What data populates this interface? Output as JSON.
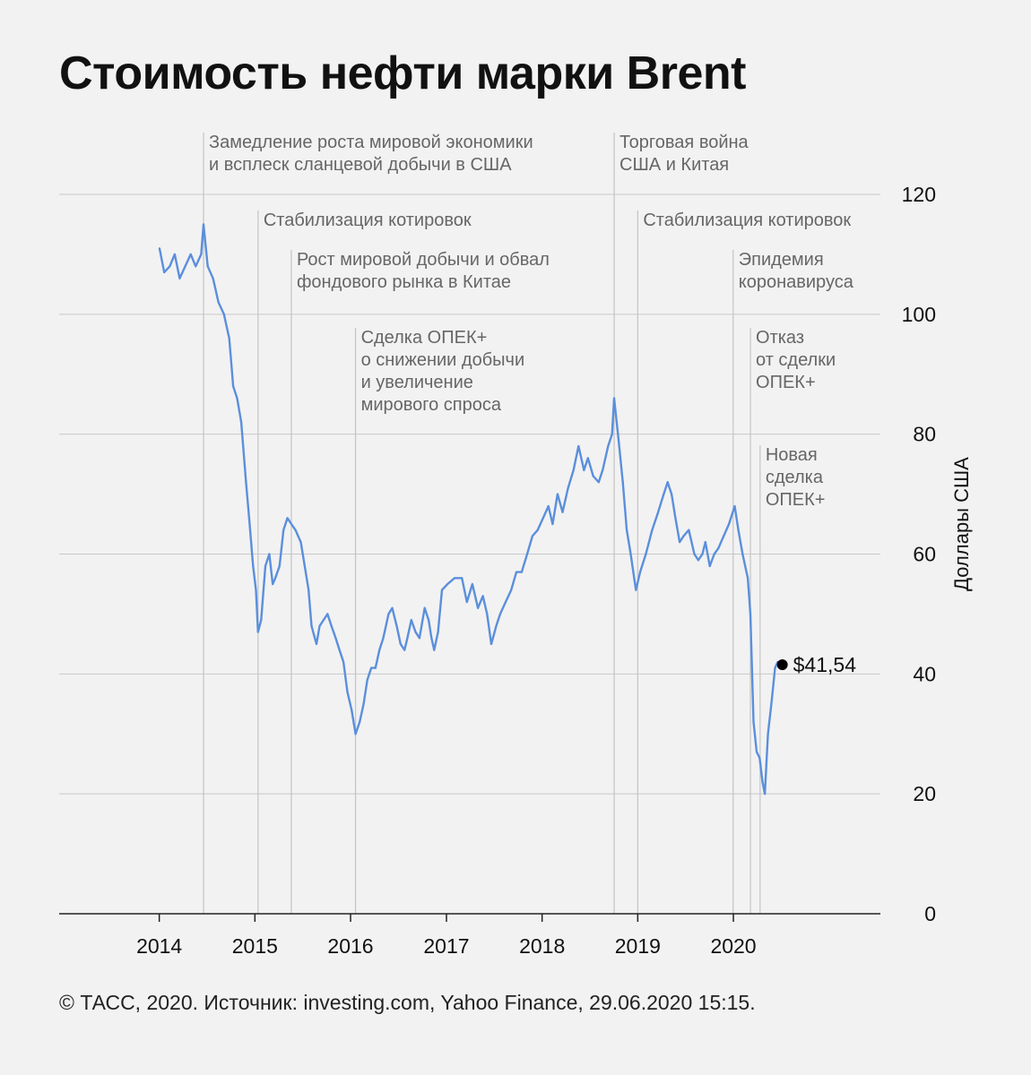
{
  "title": "Стоимость нефти марки Brent",
  "footer": "© ТАСС, 2020. Источник: investing.com, Yahoo Finance, 29.06.2020 15:15.",
  "colors": {
    "line": "#5b8fdc",
    "grid": "#c8c8c8",
    "event_line": "#c4c4c4",
    "annotation": "#666666",
    "background": "#f2f2f2"
  },
  "chart_data": {
    "type": "line",
    "title": "Стоимость нефти марки Brent",
    "ylabel": "Доллары США",
    "xlabel": "",
    "ylim": [
      0,
      120
    ],
    "xlim": [
      "2012-12-15",
      "2021-07-15"
    ],
    "y_ticks": [
      0,
      20,
      40,
      60,
      80,
      100,
      120
    ],
    "x_ticks": [
      {
        "date": "2014-01-01",
        "label": "2014"
      },
      {
        "date": "2015-01-01",
        "label": "2015"
      },
      {
        "date": "2016-01-01",
        "label": "2016"
      },
      {
        "date": "2017-01-01",
        "label": "2017"
      },
      {
        "date": "2018-01-01",
        "label": "2018"
      },
      {
        "date": "2019-01-01",
        "label": "2019"
      },
      {
        "date": "2020-01-01",
        "label": "2020"
      }
    ],
    "grid": "horizontal",
    "y_axis_side": "right",
    "series": [
      {
        "x": [
          "2014-01-02",
          "2014-01-20",
          "2014-02-10",
          "2014-03-01",
          "2014-03-20",
          "2014-04-10",
          "2014-05-01",
          "2014-05-20",
          "2014-06-10",
          "2014-06-19",
          "2014-07-05",
          "2014-07-25",
          "2014-08-15",
          "2014-09-05",
          "2014-09-25",
          "2014-10-10",
          "2014-10-25",
          "2014-11-10",
          "2014-11-28",
          "2014-12-10",
          "2014-12-25",
          "2015-01-05",
          "2015-01-13",
          "2015-01-25",
          "2015-02-10",
          "2015-02-25",
          "2015-03-10",
          "2015-03-20",
          "2015-04-05",
          "2015-04-20",
          "2015-05-05",
          "2015-05-20",
          "2015-06-05",
          "2015-06-25",
          "2015-07-10",
          "2015-07-25",
          "2015-08-05",
          "2015-08-24",
          "2015-09-05",
          "2015-09-20",
          "2015-10-05",
          "2015-10-20",
          "2015-11-05",
          "2015-11-20",
          "2015-12-05",
          "2015-12-20",
          "2016-01-05",
          "2016-01-20",
          "2016-02-05",
          "2016-02-20",
          "2016-03-05",
          "2016-03-20",
          "2016-04-05",
          "2016-04-20",
          "2016-05-05",
          "2016-05-25",
          "2016-06-08",
          "2016-06-25",
          "2016-07-10",
          "2016-07-25",
          "2016-08-05",
          "2016-08-20",
          "2016-09-05",
          "2016-09-20",
          "2016-10-10",
          "2016-10-25",
          "2016-11-05",
          "2016-11-15",
          "2016-11-30",
          "2016-12-15",
          "2017-01-05",
          "2017-02-01",
          "2017-03-01",
          "2017-03-20",
          "2017-04-10",
          "2017-05-01",
          "2017-05-20",
          "2017-06-05",
          "2017-06-21",
          "2017-07-10",
          "2017-07-25",
          "2017-08-15",
          "2017-09-05",
          "2017-09-25",
          "2017-10-15",
          "2017-11-05",
          "2017-11-25",
          "2017-12-15",
          "2018-01-05",
          "2018-01-25",
          "2018-02-10",
          "2018-03-01",
          "2018-03-20",
          "2018-04-10",
          "2018-05-01",
          "2018-05-20",
          "2018-06-10",
          "2018-06-25",
          "2018-07-15",
          "2018-08-05",
          "2018-08-20",
          "2018-09-10",
          "2018-09-25",
          "2018-10-03",
          "2018-10-20",
          "2018-11-05",
          "2018-11-20",
          "2018-12-05",
          "2018-12-25",
          "2019-01-10",
          "2019-02-01",
          "2019-02-25",
          "2019-03-20",
          "2019-04-10",
          "2019-04-25",
          "2019-05-10",
          "2019-05-25",
          "2019-06-10",
          "2019-06-25",
          "2019-07-15",
          "2019-08-05",
          "2019-08-20",
          "2019-09-05",
          "2019-09-16",
          "2019-10-03",
          "2019-10-20",
          "2019-11-05",
          "2019-11-25",
          "2019-12-15",
          "2020-01-06",
          "2020-01-20",
          "2020-02-05",
          "2020-02-25",
          "2020-03-06",
          "2020-03-18",
          "2020-03-30",
          "2020-04-10",
          "2020-04-21",
          "2020-04-30",
          "2020-05-12",
          "2020-05-25",
          "2020-06-08",
          "2020-06-18",
          "2020-06-29"
        ],
        "y": [
          111,
          107,
          108,
          110,
          106,
          108,
          110,
          108,
          110,
          115,
          108,
          106,
          102,
          100,
          96,
          88,
          86,
          82,
          72,
          66,
          58,
          54,
          47,
          49,
          58,
          60,
          55,
          56,
          58,
          64,
          66,
          65,
          64,
          62,
          58,
          54,
          48,
          45,
          48,
          49,
          50,
          48,
          46,
          44,
          42,
          37,
          34,
          30,
          32,
          35,
          39,
          41,
          41,
          44,
          46,
          50,
          51,
          48,
          45,
          44,
          46,
          49,
          47,
          46,
          51,
          49,
          46,
          44,
          47,
          54,
          55,
          56,
          56,
          52,
          55,
          51,
          53,
          50,
          45,
          48,
          50,
          52,
          54,
          57,
          57,
          60,
          63,
          64,
          66,
          68,
          65,
          70,
          67,
          71,
          74,
          78,
          74,
          76,
          73,
          72,
          74,
          78,
          80,
          86,
          79,
          72,
          64,
          60,
          54,
          57,
          60,
          64,
          67,
          70,
          72,
          70,
          66,
          62,
          63,
          64,
          60,
          59,
          60,
          62,
          58,
          60,
          61,
          63,
          65,
          68,
          64,
          60,
          56,
          50,
          32,
          27,
          26,
          22,
          20,
          30,
          35,
          41,
          42,
          41.54
        ]
      }
    ],
    "events": [
      {
        "date": "2014-06-19",
        "label": [
          "Замедление роста мировой экономики",
          "и всплеск сланцевой добычи в США"
        ]
      },
      {
        "date": "2015-01-13",
        "label": [
          "Стабилизация котировок"
        ]
      },
      {
        "date": "2015-05-20",
        "label": [
          "Рост мировой добычи и обвал",
          "фондового рынка в Китае"
        ]
      },
      {
        "date": "2016-01-20",
        "label": [
          "Сделка ОПЕК+",
          "о снижении добычи",
          "и увеличение",
          "мирового спроса"
        ]
      },
      {
        "date": "2018-10-03",
        "label": [
          "Торговая война",
          "США и Китая"
        ]
      },
      {
        "date": "2019-01-01",
        "label": [
          "Стабилизация котировок"
        ]
      },
      {
        "date": "2019-12-31",
        "label": [
          "Эпидемия",
          "коронавируса"
        ]
      },
      {
        "date": "2020-03-06",
        "label": [
          "Отказ",
          "от сделки",
          "ОПЕК+"
        ]
      },
      {
        "date": "2020-04-12",
        "label": [
          "Новая",
          "сделка",
          "ОПЕК+"
        ]
      }
    ],
    "last_point": {
      "date": "2020-06-29",
      "value": 41.54,
      "label": "$41,54"
    }
  }
}
